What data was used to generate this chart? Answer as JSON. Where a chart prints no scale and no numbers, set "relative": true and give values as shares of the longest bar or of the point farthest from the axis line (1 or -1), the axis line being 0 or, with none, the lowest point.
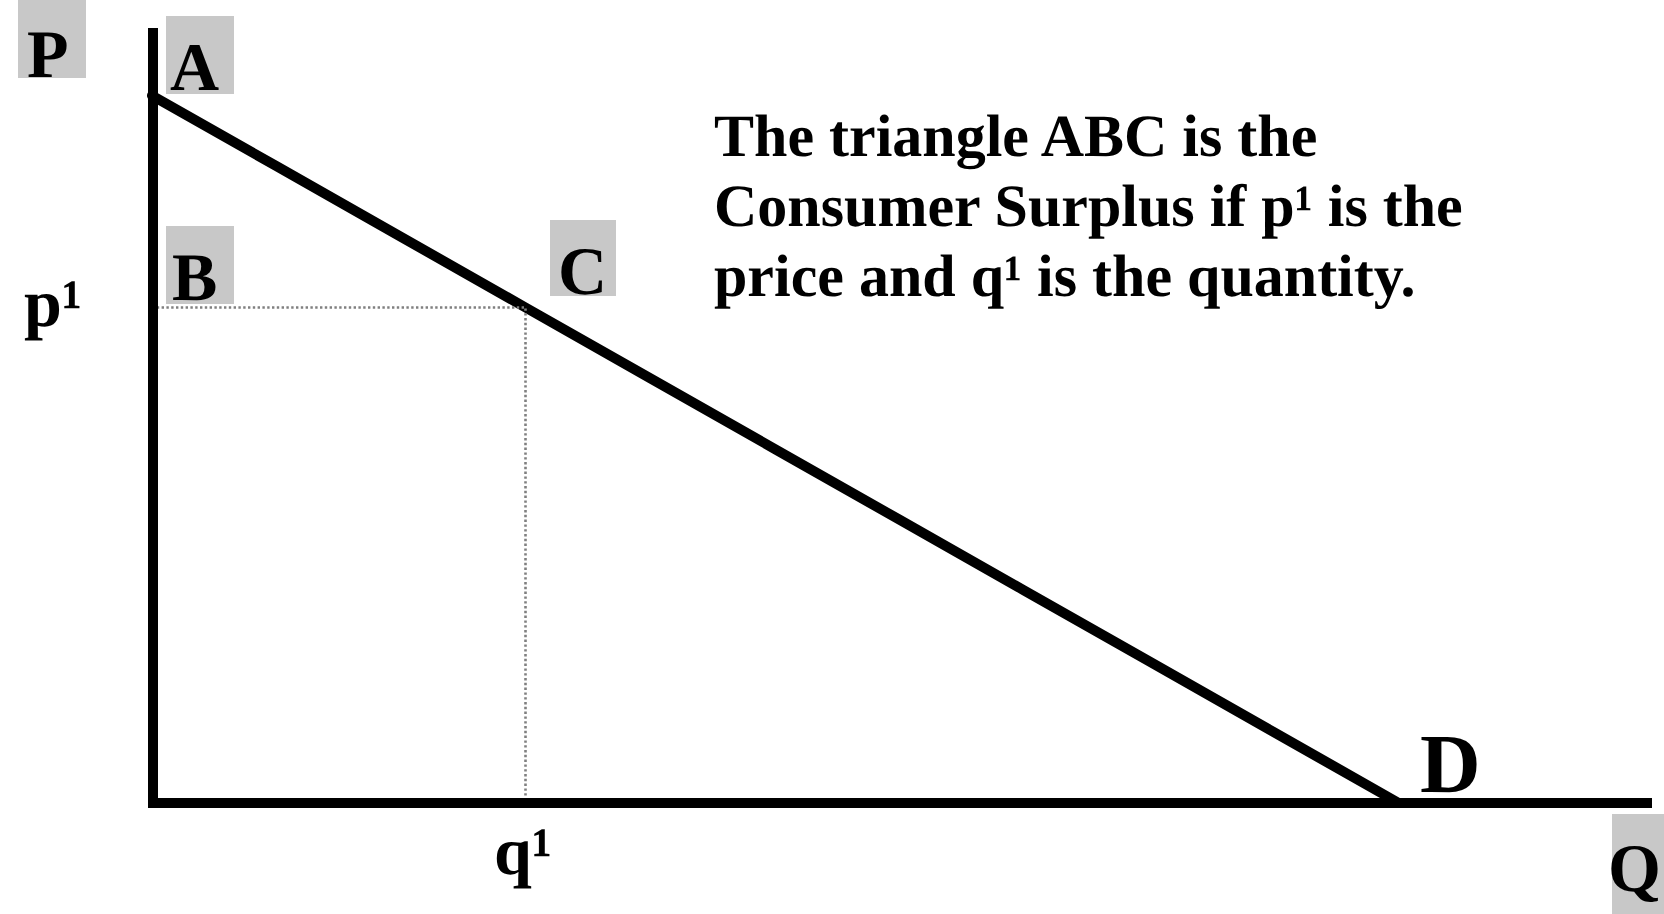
{
  "chart_data": {
    "type": "line",
    "relative": true,
    "xlabel": "Q",
    "ylabel": "P",
    "categories": [
      null,
      null,
      null,
      null,
      null,
      null,
      null,
      null,
      null,
      null,
      null,
      null,
      null
    ],
    "series": [
      {
        "color": "#000000",
        "values": [
          1,
          0.9,
          0.8,
          0.7,
          0.6,
          0.5,
          0.4,
          0.3,
          0.2,
          0.1,
          0,
          null,
          null
        ]
      },
      {
        "type": "step",
        "color": "#808080",
        "line_style": "dotted",
        "values": [
          0.7,
          0.7,
          0.7,
          0,
          null,
          null,
          null,
          null,
          null,
          null,
          null,
          null,
          null
        ]
      }
    ],
    "annotations": [
      "The triangle ABC is the Consumer Surplus if p¹ is the price and q¹ is the quantity.",
      "A",
      "B",
      "C",
      "D",
      "p¹",
      "q¹"
    ]
  }
}
